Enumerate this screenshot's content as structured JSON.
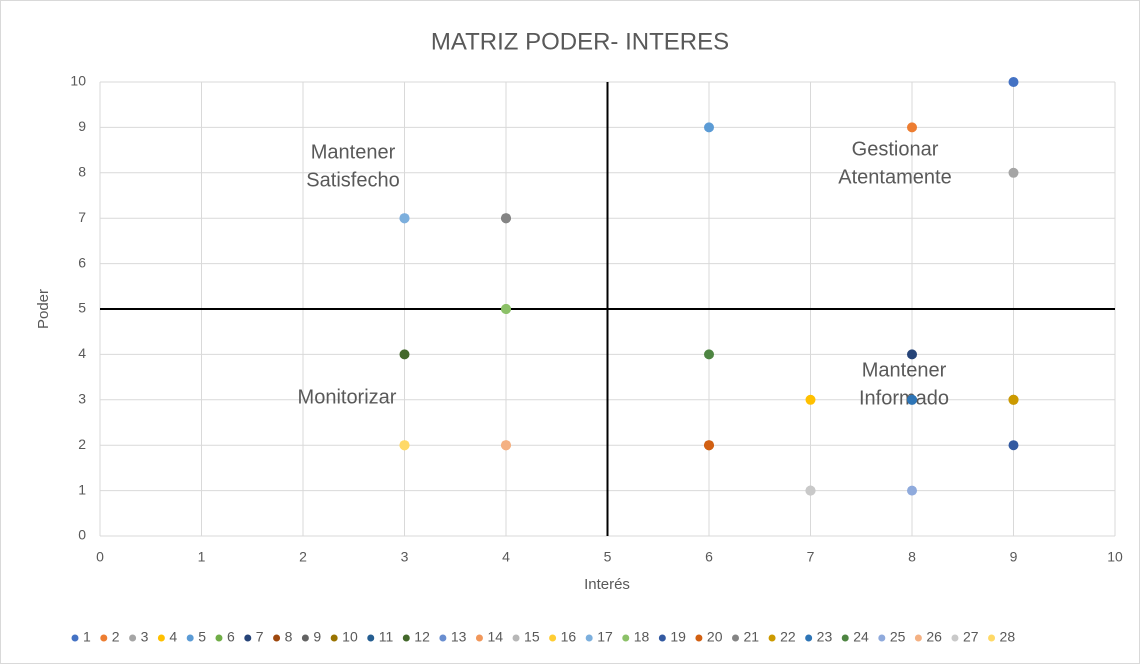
{
  "chart_data": {
    "type": "scatter",
    "title": "MATRIZ PODER- INTERES",
    "xlabel": "Interés",
    "ylabel": "Poder",
    "xlim": [
      0,
      10
    ],
    "ylim": [
      0,
      10
    ],
    "xticks": [
      0,
      1,
      2,
      3,
      4,
      5,
      6,
      7,
      8,
      9,
      10
    ],
    "yticks": [
      0,
      1,
      2,
      3,
      4,
      5,
      6,
      7,
      8,
      9,
      10
    ],
    "grid": true,
    "vlines": [
      5
    ],
    "hlines": [
      5
    ],
    "legend": "bottom",
    "annotations": [
      {
        "lines": [
          "Mantener",
          "Satisfecho"
        ]
      },
      {
        "lines": [
          "Gestionar",
          "Atentamente"
        ]
      },
      {
        "lines": [
          "Monitorizar"
        ]
      },
      {
        "lines": [
          "Mantener",
          "Informado"
        ]
      }
    ],
    "series": [
      {
        "name": "1",
        "color": "#4472C4",
        "x": [
          9
        ],
        "values": [
          10
        ]
      },
      {
        "name": "2",
        "color": "#ED7D31",
        "x": [
          8
        ],
        "values": [
          9
        ]
      },
      {
        "name": "3",
        "color": "#A5A5A5",
        "x": [
          9
        ],
        "values": [
          8
        ]
      },
      {
        "name": "4",
        "color": "#FFC000",
        "x": [
          7
        ],
        "values": [
          3
        ]
      },
      {
        "name": "5",
        "color": "#5B9BD5",
        "x": [
          6
        ],
        "values": [
          9
        ]
      },
      {
        "name": "6",
        "color": "#70AD47",
        "x": [
          4
        ],
        "values": [
          5
        ]
      },
      {
        "name": "7",
        "color": "#264478",
        "x": [
          8
        ],
        "values": [
          4
        ]
      },
      {
        "name": "8",
        "color": "#9E480E",
        "x": [
          6
        ],
        "values": [
          2
        ]
      },
      {
        "name": "9",
        "color": "#636363",
        "x": [
          4
        ],
        "values": [
          7
        ]
      },
      {
        "name": "10",
        "color": "#997300",
        "x": [
          9
        ],
        "values": [
          3
        ]
      },
      {
        "name": "11",
        "color": "#255E91",
        "x": [
          8
        ],
        "values": [
          3
        ]
      },
      {
        "name": "12",
        "color": "#43682B",
        "x": [
          3
        ],
        "values": [
          4
        ]
      },
      {
        "name": "13",
        "color": "#698ED0",
        "x": [
          3
        ],
        "values": [
          7
        ]
      },
      {
        "name": "14",
        "color": "#F1975A",
        "x": [
          4
        ],
        "values": [
          2
        ]
      },
      {
        "name": "15",
        "color": "#B7B7B7",
        "x": [
          7
        ],
        "values": [
          1
        ]
      },
      {
        "name": "16",
        "color": "#FFCD33",
        "x": [
          3
        ],
        "values": [
          2
        ]
      },
      {
        "name": "17",
        "color": "#7CAFDD",
        "x": [
          3
        ],
        "values": [
          7
        ]
      },
      {
        "name": "18",
        "color": "#8CC168",
        "x": [
          4
        ],
        "values": [
          5
        ]
      },
      {
        "name": "19",
        "color": "#335AA1",
        "x": [
          9
        ],
        "values": [
          2
        ]
      },
      {
        "name": "20",
        "color": "#D26012",
        "x": [
          6
        ],
        "values": [
          2
        ]
      },
      {
        "name": "21",
        "color": "#848484",
        "x": [
          4
        ],
        "values": [
          7
        ]
      },
      {
        "name": "22",
        "color": "#CC9A00",
        "x": [
          9
        ],
        "values": [
          3
        ]
      },
      {
        "name": "23",
        "color": "#2E75B6",
        "x": [
          8
        ],
        "values": [
          3
        ]
      },
      {
        "name": "24",
        "color": "#4E8542",
        "x": [
          6
        ],
        "values": [
          4
        ]
      },
      {
        "name": "25",
        "color": "#8FAADC",
        "x": [
          8
        ],
        "values": [
          1
        ]
      },
      {
        "name": "26",
        "color": "#F4B183",
        "x": [
          4
        ],
        "values": [
          2
        ]
      },
      {
        "name": "27",
        "color": "#C9C9C9",
        "x": [
          7
        ],
        "values": [
          1
        ]
      },
      {
        "name": "28",
        "color": "#FFD966",
        "x": [
          3
        ],
        "values": [
          2
        ]
      }
    ]
  }
}
